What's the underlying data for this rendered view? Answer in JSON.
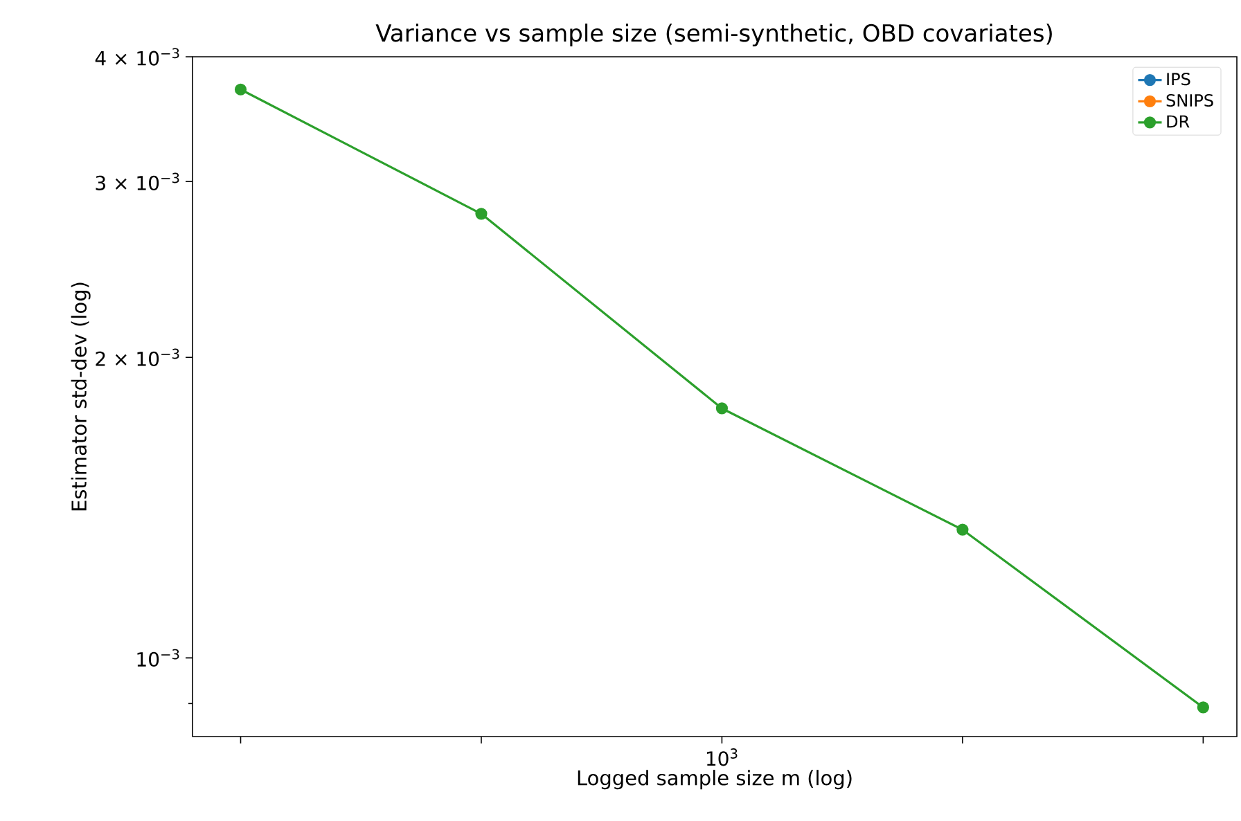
{
  "chart_data": {
    "type": "line",
    "title": "Variance vs sample size (semi-synthetic, OBD covariates)",
    "xlabel": "Logged sample size m (log)",
    "ylabel": "Estimator std-dev (log)",
    "categories": [
      null,
      null,
      "10$^{3}$",
      null,
      null
    ],
    "series": [
      {
        "name": "IPS",
        "color": "#1f77b4",
        "values": [
          null,
          null,
          null,
          null,
          null
        ]
      },
      {
        "name": "SNIPS",
        "color": "#ff7f0e",
        "values": [
          null,
          null,
          null,
          null,
          null
        ]
      },
      {
        "name": "DR",
        "color": "#2ca02c",
        "values": [
          0.00371,
          0.002785,
          0.001778,
          0.001344,
          0.000892
        ]
      }
    ],
    "log": "y",
    "ylim": [
      0.000834,
      0.004
    ],
    "yticks": [
      {
        "value": 0.0009,
        "label": null
      },
      {
        "value": 0.001,
        "label": "10$^{−3}$"
      },
      {
        "value": 0.002,
        "label": "2 × 10$^{−3}$"
      },
      {
        "value": 0.003,
        "label": "3 × 10$^{−3}$"
      },
      {
        "value": 0.004,
        "label": "4 × 10$^{−3}$"
      }
    ],
    "legend": "top right",
    "marker": "circle",
    "line_style": "solid",
    "grid": false
  }
}
